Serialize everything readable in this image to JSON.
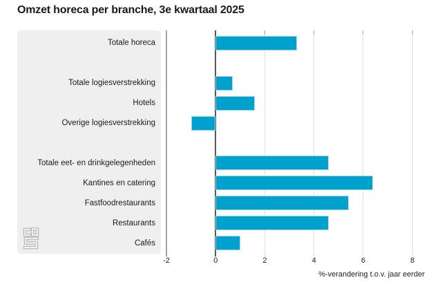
{
  "title": "Omzet horeca per branche, 3e kwartaal 2025",
  "colors": {
    "bar": "#00a1cd",
    "bar_edge": "#9fd6e8",
    "panel_bg": "#efefef",
    "grid_light": "#e2e2e2",
    "grid_edge": "#a3a3a3",
    "axis_zero": "#55585a",
    "text": "#1a1a1a"
  },
  "logo_name": "cbs-logo",
  "chart_data": {
    "type": "bar",
    "orientation": "horizontal",
    "title": "Omzet horeca per branche, 3e kwartaal 2025",
    "categories": [
      "Totale horeca",
      "Totale logiesverstrekking",
      "Hotels",
      "Overige logiesverstrekking",
      "Totale eet- en drinkgelegenheden",
      "Kantines en catering",
      "Fastfoodrestaurants",
      "Restaurants",
      "Cafés"
    ],
    "values": [
      3.3,
      0.7,
      1.6,
      -1.0,
      4.6,
      6.4,
      5.4,
      4.6,
      1.0
    ],
    "row_slots": [
      0,
      2,
      3,
      4,
      6,
      7,
      8,
      9,
      10
    ],
    "total_slots": 11,
    "xlabel": "%-verandering t.o.v. jaar eerder",
    "xticks": [
      -2,
      0,
      2,
      4,
      6,
      8
    ],
    "xlim": [
      -2,
      8.5
    ],
    "grid": true,
    "legend": "none",
    "unit": "percent"
  }
}
